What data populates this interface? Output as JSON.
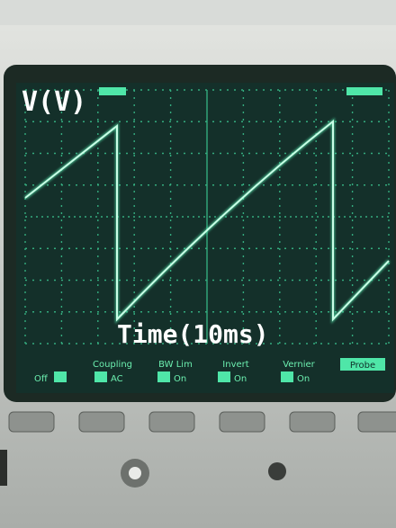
{
  "screen": {
    "y_label": "V(V)",
    "x_label": "Time(10ms)"
  },
  "softkeys": [
    {
      "title": "Coupling",
      "setting": "AC"
    },
    {
      "title": "BW Lim",
      "setting": "On"
    },
    {
      "title": "Invert",
      "setting": "On"
    },
    {
      "title": "Vernier",
      "setting": "On"
    }
  ],
  "menu_first": "Off",
  "menu_last": "Probe"
}
